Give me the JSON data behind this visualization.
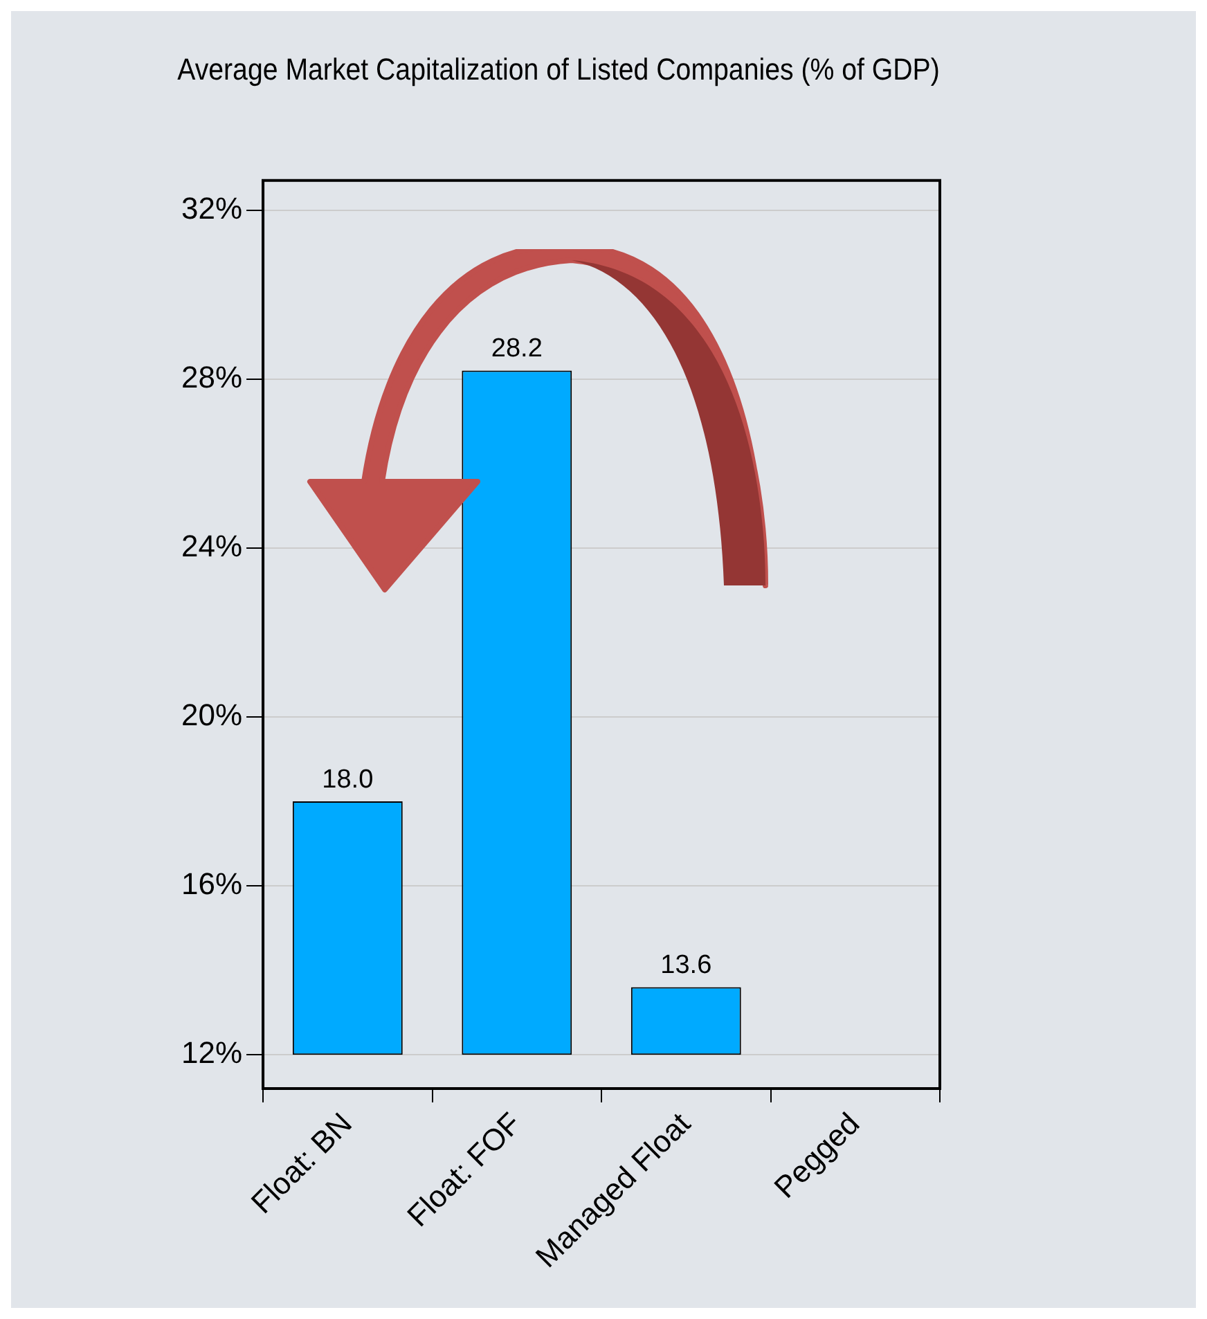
{
  "chart_data": {
    "type": "bar",
    "title": "Average Market Capitalization of Listed Companies (% of GDP)",
    "categories": [
      "Float: BN",
      "Float: FOF",
      "Managed Float",
      "Pegged"
    ],
    "values": [
      6.0,
      16.2,
      1.6,
      null
    ],
    "base": [
      12,
      12,
      12,
      null
    ],
    "value_labels": [
      "18.0",
      "28.2",
      "13.6",
      null
    ],
    "color": "#00aaff",
    "ylim": [
      11.2,
      32.7
    ],
    "yticks": [
      {
        "value": 12,
        "label": "12%"
      },
      {
        "value": 16,
        "label": "16%"
      },
      {
        "value": 20,
        "label": "20%"
      },
      {
        "value": 24,
        "label": "24%"
      },
      {
        "value": 28,
        "label": "28%"
      },
      {
        "value": 32,
        "label": "32%"
      }
    ],
    "grid": "y",
    "legend": false
  }
}
